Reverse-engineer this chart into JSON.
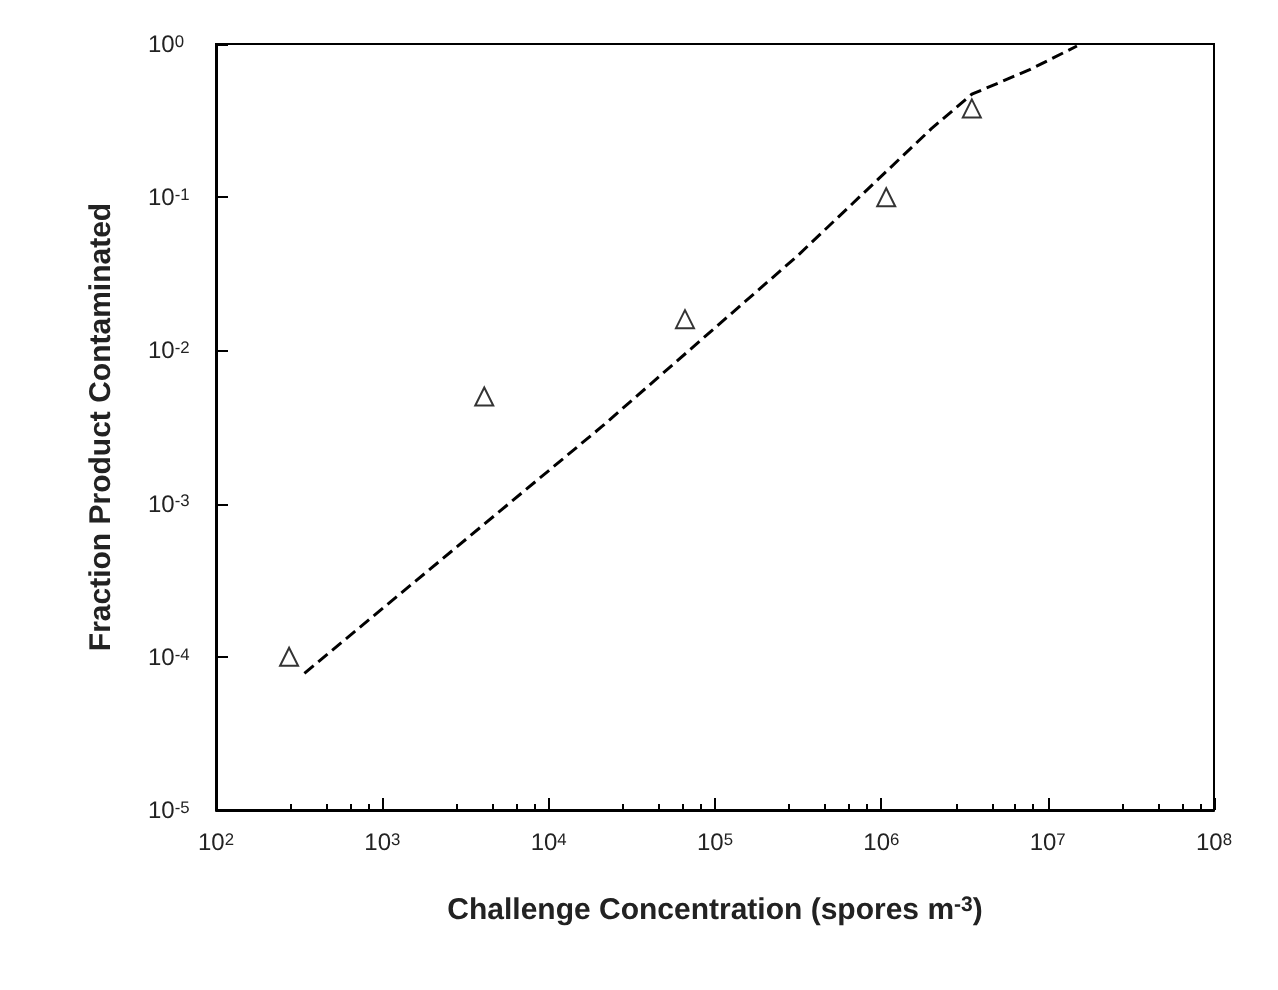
{
  "chart_data": {
    "type": "scatter",
    "xlabel": "Challenge Concentration (spores m$^{-3}$)",
    "ylabel": "Fraction Product Contaminated",
    "log": "xy",
    "grid": false,
    "xlim": [
      100,
      100000000
    ],
    "ylim": [
      1e-05,
      1
    ],
    "xticks": [
      {
        "value": 100,
        "label": "10$^{2}$"
      },
      {
        "value": 1000,
        "label": "10$^{3}$"
      },
      {
        "value": 10000,
        "label": "10$^{4}$"
      },
      {
        "value": 100000,
        "label": "10$^{5}$"
      },
      {
        "value": 1000000,
        "label": "10$^{6}$"
      },
      {
        "value": 10000000,
        "label": "10$^{7}$"
      },
      {
        "value": 100000000,
        "label": "10$^{8}$"
      }
    ],
    "yticks": [
      {
        "value": 1e-05,
        "label": "10$^{-5}$"
      },
      {
        "value": 0.0001,
        "label": "10$^{-4}$"
      },
      {
        "value": 0.001,
        "label": "10$^{-3}$"
      },
      {
        "value": 0.01,
        "label": "10$^{-2}$"
      },
      {
        "value": 0.1,
        "label": "10$^{-1}$"
      },
      {
        "value": 1,
        "label": "10$^{0}$"
      }
    ],
    "series": [
      {
        "marker": "triangle",
        "color": "#000000",
        "x": [
          275,
          4100,
          66000,
          1070000,
          3500000
        ],
        "values": [
          0.0001,
          0.005,
          0.016,
          0.1,
          0.38
        ]
      },
      {
        "type": "line",
        "marker": "none",
        "line_style": "dashed",
        "color": "#000000",
        "x": [
          340,
          21000,
          310000,
          2000000,
          3500000,
          7800000,
          15000000
        ],
        "values": [
          7.8e-05,
          0.0032,
          0.041,
          0.28,
          0.47,
          0.68,
          0.97
        ]
      }
    ]
  }
}
